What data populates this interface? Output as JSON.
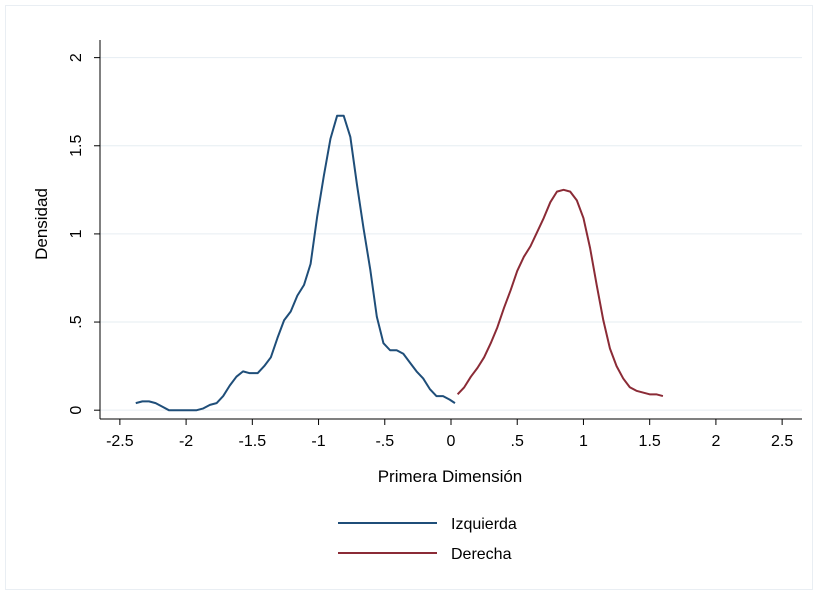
{
  "chart_data": {
    "type": "line",
    "title": "",
    "xlabel": "Primera Dimensión",
    "ylabel": "Densidad",
    "xlim": [
      -2.65,
      2.65
    ],
    "ylim": [
      -0.05,
      2.1
    ],
    "grid": true,
    "legend_position": "bottom",
    "x_ticks": [
      {
        "value": -2.5,
        "label": "-2.5"
      },
      {
        "value": -2,
        "label": "-2"
      },
      {
        "value": -1.5,
        "label": "-1.5"
      },
      {
        "value": -1,
        "label": "-1"
      },
      {
        "value": -0.5,
        "label": "-.5"
      },
      {
        "value": 0,
        "label": "0"
      },
      {
        "value": 0.5,
        "label": ".5"
      },
      {
        "value": 1,
        "label": "1"
      },
      {
        "value": 1.5,
        "label": "1.5"
      },
      {
        "value": 2,
        "label": "2"
      },
      {
        "value": 2.5,
        "label": "2.5"
      }
    ],
    "y_ticks": [
      {
        "value": 0,
        "label": "0"
      },
      {
        "value": 0.5,
        "label": ".5"
      },
      {
        "value": 1,
        "label": "1"
      },
      {
        "value": 1.5,
        "label": "1.5"
      },
      {
        "value": 2,
        "label": "2"
      }
    ],
    "series": [
      {
        "name": "Izquierda",
        "color": "#1f4e79",
        "points": [
          [
            -2.38,
            0.04
          ],
          [
            -2.33,
            0.05
          ],
          [
            -2.28,
            0.05
          ],
          [
            -2.23,
            0.04
          ],
          [
            -2.18,
            0.02
          ],
          [
            -2.13,
            0.0
          ],
          [
            -2.08,
            0.0
          ],
          [
            -2.03,
            0.0
          ],
          [
            -1.98,
            0.0
          ],
          [
            -1.92,
            0.0
          ],
          [
            -1.87,
            0.01
          ],
          [
            -1.82,
            0.03
          ],
          [
            -1.77,
            0.04
          ],
          [
            -1.72,
            0.08
          ],
          [
            -1.67,
            0.14
          ],
          [
            -1.62,
            0.19
          ],
          [
            -1.57,
            0.22
          ],
          [
            -1.52,
            0.21
          ],
          [
            -1.46,
            0.21
          ],
          [
            -1.41,
            0.25
          ],
          [
            -1.36,
            0.3
          ],
          [
            -1.31,
            0.41
          ],
          [
            -1.26,
            0.51
          ],
          [
            -1.21,
            0.56
          ],
          [
            -1.16,
            0.65
          ],
          [
            -1.11,
            0.71
          ],
          [
            -1.06,
            0.83
          ],
          [
            -1.01,
            1.1
          ],
          [
            -0.96,
            1.33
          ],
          [
            -0.91,
            1.54
          ],
          [
            -0.86,
            1.67
          ],
          [
            -0.81,
            1.67
          ],
          [
            -0.76,
            1.55
          ],
          [
            -0.71,
            1.28
          ],
          [
            -0.66,
            1.03
          ],
          [
            -0.61,
            0.8
          ],
          [
            -0.56,
            0.53
          ],
          [
            -0.51,
            0.38
          ],
          [
            -0.46,
            0.34
          ],
          [
            -0.41,
            0.34
          ],
          [
            -0.36,
            0.32
          ],
          [
            -0.31,
            0.27
          ],
          [
            -0.26,
            0.22
          ],
          [
            -0.21,
            0.18
          ],
          [
            -0.16,
            0.12
          ],
          [
            -0.11,
            0.08
          ],
          [
            -0.06,
            0.08
          ],
          [
            -0.01,
            0.06
          ],
          [
            0.03,
            0.04
          ]
        ]
      },
      {
        "name": "Derecha",
        "color": "#8b2b36",
        "points": [
          [
            0.05,
            0.09
          ],
          [
            0.1,
            0.13
          ],
          [
            0.15,
            0.19
          ],
          [
            0.2,
            0.24
          ],
          [
            0.25,
            0.3
          ],
          [
            0.3,
            0.38
          ],
          [
            0.35,
            0.47
          ],
          [
            0.4,
            0.58
          ],
          [
            0.45,
            0.68
          ],
          [
            0.5,
            0.79
          ],
          [
            0.55,
            0.87
          ],
          [
            0.6,
            0.93
          ],
          [
            0.65,
            1.01
          ],
          [
            0.7,
            1.09
          ],
          [
            0.75,
            1.18
          ],
          [
            0.8,
            1.24
          ],
          [
            0.85,
            1.25
          ],
          [
            0.9,
            1.24
          ],
          [
            0.95,
            1.19
          ],
          [
            1.0,
            1.09
          ],
          [
            1.05,
            0.92
          ],
          [
            1.1,
            0.71
          ],
          [
            1.15,
            0.51
          ],
          [
            1.2,
            0.35
          ],
          [
            1.25,
            0.25
          ],
          [
            1.3,
            0.18
          ],
          [
            1.35,
            0.13
          ],
          [
            1.4,
            0.11
          ],
          [
            1.45,
            0.1
          ],
          [
            1.5,
            0.09
          ],
          [
            1.55,
            0.09
          ],
          [
            1.6,
            0.08
          ]
        ]
      }
    ]
  }
}
